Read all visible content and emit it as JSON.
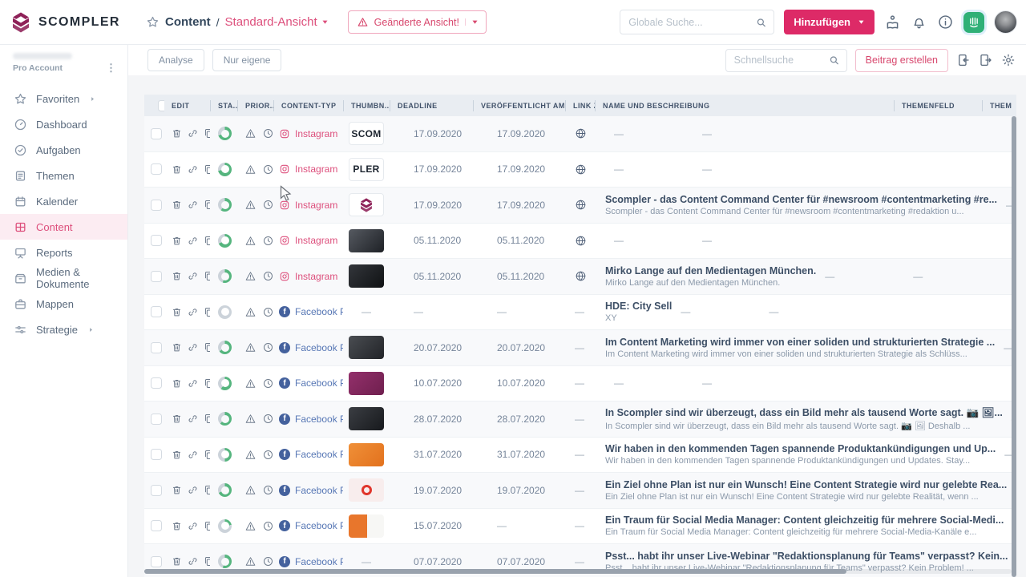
{
  "brand": {
    "name": "SCOMPLER"
  },
  "colors": {
    "accent": "#dd2a67",
    "accent_text": "#dd4f7c",
    "logo": "#8e2158",
    "facebook": "#44619d",
    "status_green": "#55b57e"
  },
  "header": {
    "breadcrumb": {
      "section": "Content",
      "separator": "/",
      "view": "Standard-Ansicht"
    },
    "changed_view": "Geänderte Ansicht!",
    "global_search_placeholder": "Globale Suche...",
    "add_button": "Hinzufügen"
  },
  "toolbar": {
    "analyse": "Analyse",
    "nur_eigene": "Nur eigene",
    "quick_search_placeholder": "Schnellsuche",
    "create_post": "Beitrag erstellen"
  },
  "sidebar": {
    "account": "Pro Account",
    "items": [
      {
        "label": "Favoriten",
        "icon": "star",
        "expandable": true
      },
      {
        "label": "Dashboard",
        "icon": "gauge"
      },
      {
        "label": "Aufgaben",
        "icon": "checkCircle"
      },
      {
        "label": "Themen",
        "icon": "note"
      },
      {
        "label": "Kalender",
        "icon": "calendar"
      },
      {
        "label": "Content",
        "icon": "grid",
        "active": true
      },
      {
        "label": "Reports",
        "icon": "presentation"
      },
      {
        "label": "Medien & Dokumente",
        "icon": "archive"
      },
      {
        "label": "Mappen",
        "icon": "briefcase"
      },
      {
        "label": "Strategie",
        "icon": "sliders",
        "expandable": true
      }
    ]
  },
  "table": {
    "columns": [
      "EDIT",
      "STA...",
      "PRIOR...",
      "CONTENT-TYP",
      "THUMBN...",
      "DEADLINE",
      "VERÖFFENTLICHT AM",
      "LINK Z...",
      "NAME UND BESCHREIBUNG",
      "THEMENFELD",
      "THEMA"
    ],
    "empty_value": "—",
    "rows": [
      {
        "type": "Instagram",
        "network": "instagram",
        "status_progress": 0.7,
        "thumb": {
          "kind": "text",
          "label": "SCOM"
        },
        "deadline": "17.09.2020",
        "published": "17.09.2020",
        "link": "globe",
        "name": "",
        "description": "",
        "themenfeld": "—",
        "thema": "—"
      },
      {
        "type": "Instagram",
        "network": "instagram",
        "status_progress": 0.72,
        "thumb": {
          "kind": "text",
          "label": "PLER"
        },
        "deadline": "17.09.2020",
        "published": "17.09.2020",
        "link": "globe",
        "name": "",
        "description": "",
        "themenfeld": "—",
        "thema": "—"
      },
      {
        "type": "Instagram",
        "network": "instagram",
        "status_progress": 0.6,
        "thumb": {
          "kind": "logo"
        },
        "deadline": "17.09.2020",
        "published": "17.09.2020",
        "link": "globe",
        "name": "Scompler - das Content Command Center für #newsroom #contentmarketing #re...",
        "description": "Scompler - das Content Command Center für #newsroom #contentmarketing #redaktion u...",
        "themenfeld": "—",
        "thema": "—"
      },
      {
        "type": "Instagram",
        "network": "instagram",
        "status_progress": 0.68,
        "thumb": {
          "kind": "photo",
          "colors": [
            "#565a61",
            "#1e2126"
          ]
        },
        "deadline": "05.11.2020",
        "published": "05.11.2020",
        "link": "globe",
        "name": "",
        "description": "",
        "themenfeld": "—",
        "thema": "—"
      },
      {
        "type": "Instagram",
        "network": "instagram",
        "status_progress": 0.55,
        "thumb": {
          "kind": "photo",
          "colors": [
            "#33363b",
            "#101214"
          ]
        },
        "deadline": "05.11.2020",
        "published": "05.11.2020",
        "link": "globe",
        "name": "Mirko Lange auf den Medientagen München.",
        "description": "Mirko Lange auf den Medientagen München.",
        "themenfeld": "—",
        "thema": "—"
      },
      {
        "type": "Facebook Post",
        "network": "facebook",
        "status_progress": 0,
        "thumb": {
          "kind": "none"
        },
        "deadline": "—",
        "published": "—",
        "link": "—",
        "name": "HDE: City Sell",
        "description": "XY",
        "themenfeld": "—",
        "thema": "—"
      },
      {
        "type": "Facebook Post",
        "network": "facebook",
        "status_progress": 0.65,
        "thumb": {
          "kind": "photo",
          "colors": [
            "#4a4d52",
            "#222428"
          ]
        },
        "deadline": "20.07.2020",
        "published": "20.07.2020",
        "link": "—",
        "name": "Im Content Marketing wird immer von einer soliden und strukturierten Strategie ...",
        "description": "Im Content Marketing wird immer von einer soliden und strukturierten Strategie als Schlüss...",
        "themenfeld": "—",
        "thema": "—"
      },
      {
        "type": "Facebook Post",
        "network": "facebook",
        "status_progress": 0.6,
        "thumb": {
          "kind": "photo",
          "colors": [
            "#93306b",
            "#6f1f4e"
          ]
        },
        "deadline": "10.07.2020",
        "published": "10.07.2020",
        "link": "—",
        "name": "",
        "description": "",
        "themenfeld": "—",
        "thema": "—"
      },
      {
        "type": "Facebook Post",
        "network": "facebook",
        "status_progress": 0.62,
        "thumb": {
          "kind": "photo",
          "colors": [
            "#3b3e43",
            "#17191d"
          ]
        },
        "deadline": "28.07.2020",
        "published": "28.07.2020",
        "link": "—",
        "name": "In Scompler sind wir überzeugt, dass ein Bild mehr als tausend Worte sagt. 📷 🖼...",
        "description": "In Scompler sind wir überzeugt, dass ein Bild mehr als tausend Worte sagt. 📷 🖼 Deshalb ...",
        "themenfeld": "—",
        "thema": "—"
      },
      {
        "type": "Facebook Post",
        "network": "facebook",
        "status_progress": 0.5,
        "thumb": {
          "kind": "photo",
          "colors": [
            "#f09038",
            "#e2711d"
          ]
        },
        "deadline": "31.07.2020",
        "published": "31.07.2020",
        "link": "—",
        "name": "Wir haben in den kommenden Tagen spannende Produktankündigungen und Up...",
        "description": "Wir haben in den kommenden Tagen spannende Produktankündigungen und Updates. Stay...",
        "themenfeld": "—",
        "thema": "—"
      },
      {
        "type": "Facebook Post",
        "network": "facebook",
        "status_progress": 0.68,
        "thumb": {
          "kind": "dot",
          "colors": [
            "#f8eded"
          ],
          "dot": "#e0352b"
        },
        "deadline": "19.07.2020",
        "published": "19.07.2020",
        "link": "—",
        "name": "Ein Ziel ohne Plan ist nur ein Wunsch! Eine Content Strategie wird nur gelebte Rea...",
        "description": "Ein Ziel ohne Plan ist nur ein Wunsch! Eine Content Strategie wird nur gelebte Realität, wenn ...",
        "themenfeld": "—",
        "thema": "—"
      },
      {
        "type": "Facebook Post",
        "network": "facebook",
        "status_progress": 0.22,
        "thumb": {
          "kind": "split",
          "colors": [
            "#e8762c",
            "#f7f7f5"
          ]
        },
        "deadline": "15.07.2020",
        "published": "—",
        "link": "—",
        "name": "Ein Traum für Social Media Manager: Content gleichzeitig für mehrere Social-Medi...",
        "description": "Ein Traum für Social Media Manager: Content gleichzeitig für mehrere Social-Media-Kanäle e...",
        "themenfeld": "—",
        "thema": "—"
      },
      {
        "type": "Facebook Post",
        "network": "facebook",
        "status_progress": 0.55,
        "thumb": {
          "kind": "none"
        },
        "deadline": "07.07.2020",
        "published": "07.07.2020",
        "link": "—",
        "name": "Psst... habt ihr unser Live-Webinar \"Redaktionsplanung für Teams\" verpasst? Kein...",
        "description": "Psst... habt ihr unser Live-Webinar \"Redaktionsplanung für Teams\" verpasst? Kein Problem! ...",
        "themenfeld": "—",
        "thema": "—"
      }
    ]
  }
}
